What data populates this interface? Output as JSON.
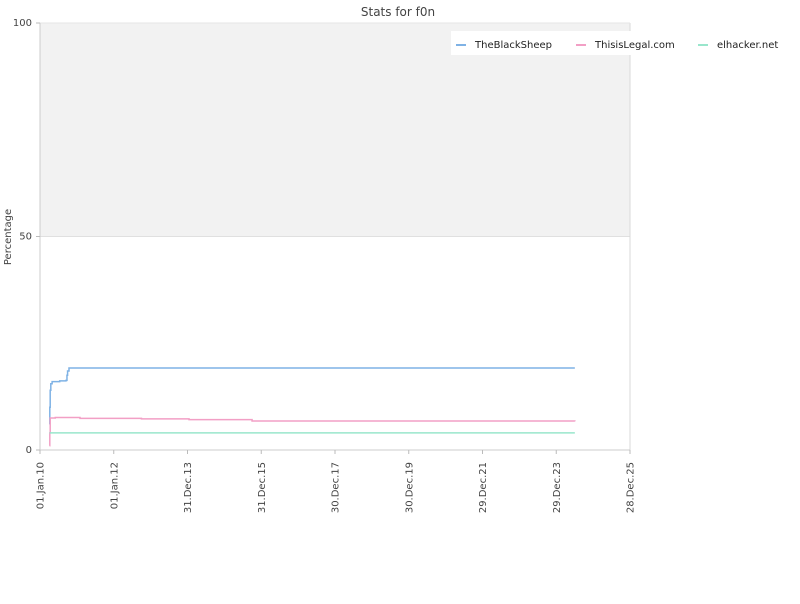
{
  "chart_data": {
    "type": "line",
    "title": "Stats for f0n",
    "xlabel": "",
    "ylabel": "Percentage",
    "ylim": [
      0,
      100
    ],
    "xlim": [
      "2010-01-01",
      "2025-12-28"
    ],
    "y_ticks": [
      0,
      50,
      100
    ],
    "x_ticks": [
      "01.Jan.10",
      "01.Jan.12",
      "31.Dec.13",
      "31.Dec.15",
      "30.Dec.17",
      "30.Dec.19",
      "29.Dec.21",
      "29.Dec.23",
      "28.Dec.25"
    ],
    "x_tick_dates": [
      "2010-01-01",
      "2012-01-01",
      "2013-12-31",
      "2015-12-31",
      "2017-12-30",
      "2019-12-30",
      "2021-12-29",
      "2023-12-29",
      "2025-12-28"
    ],
    "upper_band": {
      "from": 50,
      "to": 100,
      "color": "#f2f2f2"
    },
    "grid": true,
    "legend_position": "top-right",
    "series": [
      {
        "name": "TheBlackSheep",
        "color": "#7fb2e5",
        "points": [
          [
            "2010-04-05",
            6
          ],
          [
            "2010-04-08",
            10
          ],
          [
            "2010-04-12",
            14
          ],
          [
            "2010-04-18",
            15.5
          ],
          [
            "2010-05-01",
            16
          ],
          [
            "2010-07-15",
            16.2
          ],
          [
            "2010-09-15",
            16.3
          ],
          [
            "2010-09-25",
            17.5
          ],
          [
            "2010-10-01",
            18.5
          ],
          [
            "2010-10-15",
            19.2
          ],
          [
            "2024-06-30",
            19.2
          ]
        ]
      },
      {
        "name": "ThisisLegal.com",
        "color": "#f29fc5",
        "points": [
          [
            "2010-04-05",
            1
          ],
          [
            "2010-04-08",
            4
          ],
          [
            "2010-04-12",
            7.5
          ],
          [
            "2010-06-01",
            7.6
          ],
          [
            "2011-01-01",
            7.6
          ],
          [
            "2011-02-01",
            7.4
          ],
          [
            "2012-10-01",
            7.3
          ],
          [
            "2014-01-15",
            7.1
          ],
          [
            "2015-10-01",
            6.8
          ],
          [
            "2024-06-30",
            6.7
          ]
        ]
      },
      {
        "name": "elhacker.net",
        "color": "#99e6cc",
        "points": [
          [
            "2010-04-05",
            4
          ],
          [
            "2010-04-20",
            4
          ],
          [
            "2024-06-30",
            4
          ]
        ]
      }
    ]
  }
}
